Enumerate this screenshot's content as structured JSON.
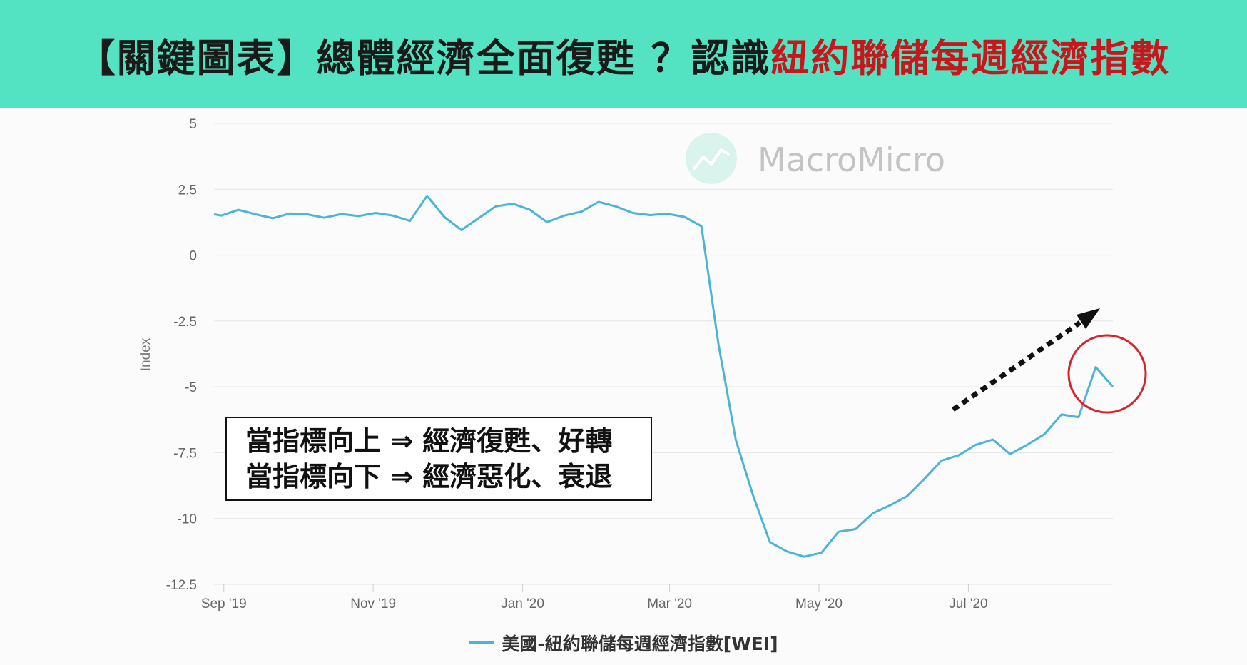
{
  "header": {
    "title_prefix": "【關鍵圖表】總體經濟全面復甦 ？認識",
    "title_highlight": "紐約聯儲每週經濟指數"
  },
  "watermark": {
    "text": "MacroMicro",
    "icon": "macromicro-logo-icon"
  },
  "annotation": {
    "line1": "當指標向上 ⇒ 經濟復甦、好轉",
    "line2": "當指標向下 ⇒ 經濟惡化、衰退"
  },
  "colors": {
    "banner": "#54e3c2",
    "highlight": "#c8161d",
    "series": "#4ab5d5",
    "circle": "#d9232a",
    "arrow": "#111111"
  },
  "chart_data": {
    "type": "line",
    "title": "",
    "xlabel": "",
    "ylabel": "Index",
    "ylim": [
      -12.5,
      5
    ],
    "yticks": [
      "5",
      "2.5",
      "0",
      "-2.5",
      "-5",
      "-7.5",
      "-10",
      "-12.5"
    ],
    "ytick_values": [
      5,
      2.5,
      0,
      -2.5,
      -5,
      -7.5,
      -10,
      -12.5
    ],
    "xticks": [
      "Sep '19",
      "Nov '19",
      "Jan '20",
      "Mar '20",
      "May '20",
      "Jul '20"
    ],
    "xtick_dates": [
      "2019-09-01",
      "2019-11-01",
      "2020-01-01",
      "2020-03-01",
      "2020-05-01",
      "2020-07-01"
    ],
    "xlim": [
      "2019-08-28",
      "2020-08-29"
    ],
    "grid": true,
    "legend": "bottom-center",
    "series": [
      {
        "name": "美國-紐約聯儲每週經濟指數[WEI]",
        "x": [
          "2019-08-28",
          "2019-08-31",
          "2019-09-07",
          "2019-09-14",
          "2019-09-21",
          "2019-09-28",
          "2019-10-05",
          "2019-10-12",
          "2019-10-19",
          "2019-10-26",
          "2019-11-02",
          "2019-11-09",
          "2019-11-16",
          "2019-11-23",
          "2019-11-30",
          "2019-12-07",
          "2019-12-14",
          "2019-12-21",
          "2019-12-28",
          "2020-01-04",
          "2020-01-11",
          "2020-01-18",
          "2020-01-25",
          "2020-02-01",
          "2020-02-08",
          "2020-02-15",
          "2020-02-22",
          "2020-02-29",
          "2020-03-07",
          "2020-03-14",
          "2020-03-21",
          "2020-03-28",
          "2020-04-04",
          "2020-04-11",
          "2020-04-18",
          "2020-04-25",
          "2020-05-02",
          "2020-05-09",
          "2020-05-16",
          "2020-05-23",
          "2020-05-30",
          "2020-06-06",
          "2020-06-13",
          "2020-06-20",
          "2020-06-27",
          "2020-07-04",
          "2020-07-11",
          "2020-07-18",
          "2020-07-25",
          "2020-08-01",
          "2020-08-08",
          "2020-08-15",
          "2020-08-22",
          "2020-08-29"
        ],
        "values": [
          1.55,
          1.5,
          1.72,
          1.55,
          1.4,
          1.58,
          1.55,
          1.42,
          1.56,
          1.48,
          1.6,
          1.5,
          1.3,
          2.25,
          1.45,
          0.95,
          1.4,
          1.85,
          1.95,
          1.72,
          1.25,
          1.5,
          1.65,
          2.02,
          1.85,
          1.6,
          1.52,
          1.57,
          1.45,
          1.1,
          -3.4,
          -7.0,
          -9.1,
          -10.9,
          -11.25,
          -11.45,
          -11.3,
          -10.5,
          -10.4,
          -9.8,
          -9.5,
          -9.15,
          -8.5,
          -7.8,
          -7.6,
          -7.2,
          -7.0,
          -7.55,
          -7.2,
          -6.8,
          -6.05,
          -6.15,
          -4.25,
          -5.0
        ]
      }
    ]
  }
}
